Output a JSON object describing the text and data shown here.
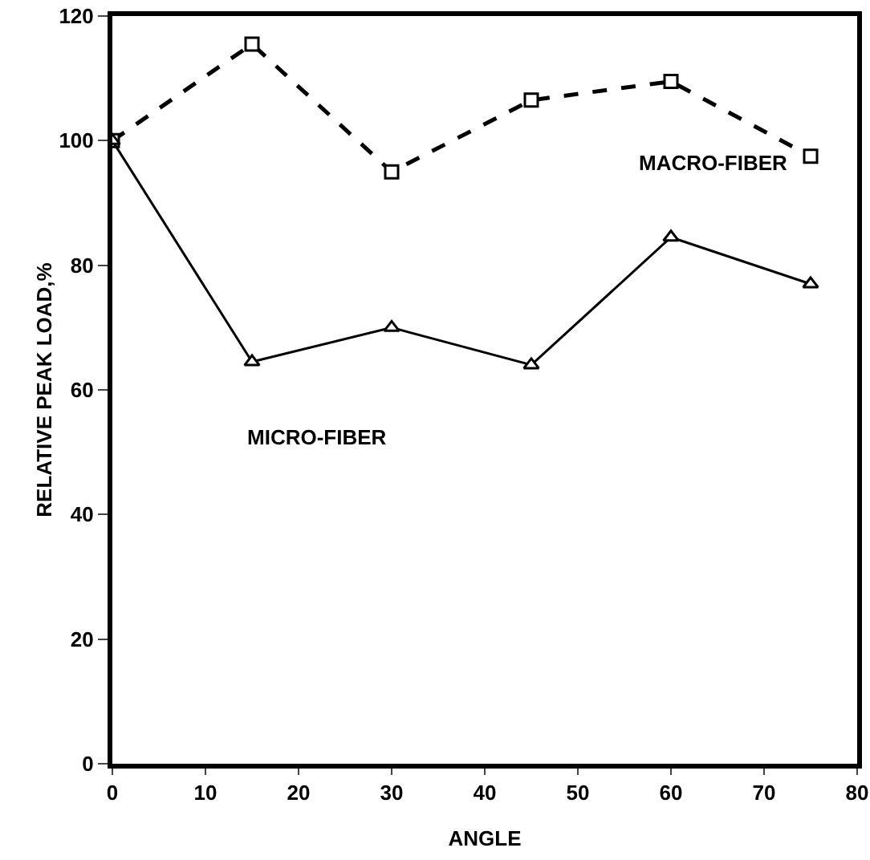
{
  "chart_data": {
    "type": "line",
    "xlabel": "ANGLE",
    "ylabel": "RELATIVE PEAK LOAD,%",
    "x": [
      0,
      15,
      30,
      45,
      60,
      75
    ],
    "series": [
      {
        "name": "MACRO-FIBER",
        "color": "#000000",
        "values": [
          100,
          115.5,
          95,
          106.5,
          109.5,
          97.5
        ],
        "line_style": "dashed",
        "marker": "square"
      },
      {
        "name": "MICRO-FIBER",
        "color": "#000000",
        "values": [
          100,
          64.5,
          70,
          64,
          84.5,
          77
        ],
        "line_style": "solid",
        "marker": "triangle"
      }
    ],
    "xlim": [
      0,
      80
    ],
    "xticks": [
      0,
      10,
      20,
      30,
      40,
      50,
      60,
      70,
      80
    ],
    "ylim": [
      0,
      120
    ],
    "yticks": [
      0,
      20,
      40,
      60,
      80,
      100,
      120
    ],
    "grid": false,
    "legend": false
  }
}
